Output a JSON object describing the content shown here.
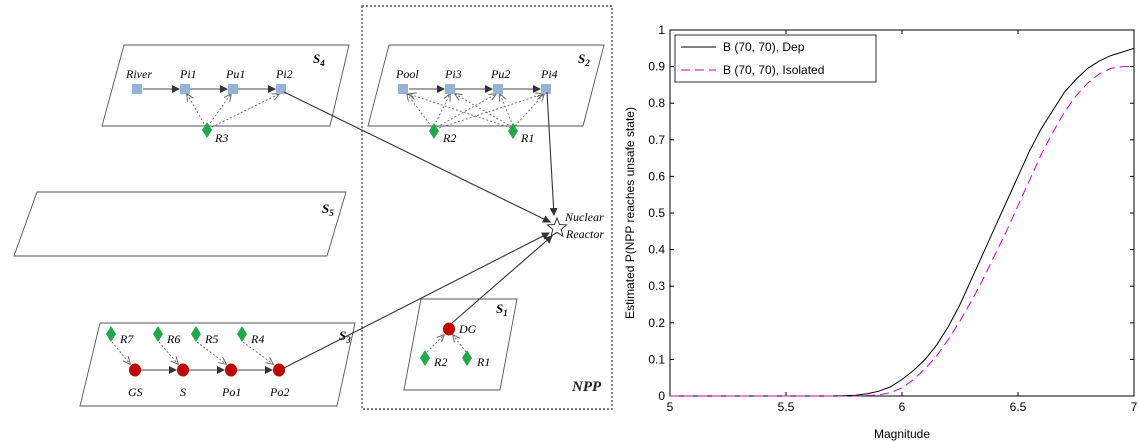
{
  "diagram": {
    "subsystems": {
      "s4": {
        "label": "S",
        "sub": "4"
      },
      "s2": {
        "label": "S",
        "sub": "2"
      },
      "s5": {
        "label": "S",
        "sub": "5"
      },
      "s3": {
        "label": "S",
        "sub": "3"
      },
      "s1": {
        "label": "S",
        "sub": "1"
      }
    },
    "nodes": {
      "river": "River",
      "pi1": "Pi1",
      "pu1": "Pu1",
      "pi2": "Pi2",
      "r3": "R3",
      "pool": "Pool",
      "pi3": "Pi3",
      "pu2": "Pu2",
      "pi4": "Pi4",
      "s2_r2": "R2",
      "s2_r1": "R1",
      "r7": "R7",
      "r6": "R6",
      "r5": "R5",
      "r4": "R4",
      "gs": "GS",
      "s": "S",
      "po1": "Po1",
      "po2": "Po2",
      "dg": "DG",
      "s1_r2": "R2",
      "s1_r1": "R1",
      "reactor_line1": "Nuclear",
      "reactor_line2": "Reactor"
    },
    "npp_label": "NPP",
    "colors": {
      "pipe": "#95b3d7",
      "resource": "#22a84a",
      "power": "#c00000"
    }
  },
  "chart_data": {
    "type": "line",
    "xlabel": "Magnitude",
    "ylabel": "Estimated P(NPP reaches unsafe state)",
    "xlim": [
      5,
      7
    ],
    "ylim": [
      0,
      1
    ],
    "xticks": [
      "5",
      "5.5",
      "6",
      "6.5",
      "7"
    ],
    "yticks": [
      "0",
      "0.1",
      "0.2",
      "0.3",
      "0.4",
      "0.5",
      "0.6",
      "0.7",
      "0.8",
      "0.9",
      "1"
    ],
    "grid": false,
    "legend_position": "top-left",
    "series": [
      {
        "name": "B (70, 70), Dep",
        "color": "#000000",
        "dash": "solid",
        "x": [
          5.0,
          5.5,
          5.7,
          5.8,
          5.85,
          5.9,
          5.95,
          6.0,
          6.05,
          6.1,
          6.15,
          6.2,
          6.25,
          6.3,
          6.35,
          6.4,
          6.45,
          6.5,
          6.55,
          6.6,
          6.65,
          6.7,
          6.75,
          6.8,
          6.85,
          6.9,
          6.95,
          7.0
        ],
        "y": [
          0.0,
          0.0,
          0.0,
          0.002,
          0.006,
          0.013,
          0.025,
          0.045,
          0.07,
          0.1,
          0.14,
          0.19,
          0.25,
          0.32,
          0.39,
          0.46,
          0.53,
          0.6,
          0.67,
          0.73,
          0.78,
          0.83,
          0.865,
          0.895,
          0.915,
          0.93,
          0.94,
          0.95
        ]
      },
      {
        "name": "B (70, 70), Isolated",
        "color": "#cc00cc",
        "dash": "dashed",
        "x": [
          5.0,
          5.5,
          5.8,
          5.9,
          5.95,
          6.0,
          6.05,
          6.1,
          6.15,
          6.2,
          6.25,
          6.3,
          6.35,
          6.4,
          6.45,
          6.5,
          6.55,
          6.6,
          6.65,
          6.7,
          6.75,
          6.8,
          6.85,
          6.9,
          6.95,
          7.0
        ],
        "y": [
          0.0,
          0.0,
          0.0,
          0.003,
          0.009,
          0.022,
          0.045,
          0.075,
          0.11,
          0.155,
          0.205,
          0.26,
          0.32,
          0.385,
          0.45,
          0.52,
          0.59,
          0.66,
          0.72,
          0.775,
          0.82,
          0.855,
          0.88,
          0.895,
          0.9,
          0.9
        ]
      }
    ]
  }
}
